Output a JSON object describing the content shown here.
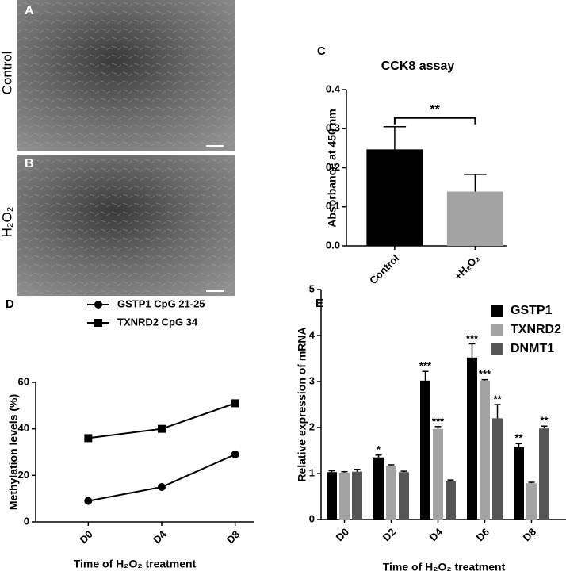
{
  "images": [
    {
      "panel_label": "A",
      "caption": "Control"
    },
    {
      "panel_label": "B",
      "caption": "H₂O₂"
    }
  ],
  "chart_data": [
    {
      "type": "bar",
      "panel_label": "C",
      "title": "CCK8 assay",
      "y_label": "Absorbance at 450 nm",
      "categories": [
        "Control",
        "+H₂O₂"
      ],
      "values": [
        0.247,
        0.139
      ],
      "errors": [
        0.058,
        0.044
      ],
      "colors": [
        "#000000",
        "#a3a3a3"
      ],
      "significance": "**",
      "ylim": [
        0,
        0.4
      ],
      "yticks": [
        {
          "value": 0,
          "label": "0.0"
        },
        0.1,
        0.2,
        0.3,
        0.4
      ]
    },
    {
      "type": "line",
      "panel_label": "D",
      "y_label": "Methylation levels (%)",
      "x_label": "Time of H₂O₂ treatment",
      "categories": [
        "D0",
        "D4",
        "D8"
      ],
      "series": [
        {
          "name": "GSTP1 CpG 21-25",
          "color": "#000000",
          "marker": "circle",
          "values": [
            9,
            15,
            29
          ]
        },
        {
          "name": "TXNRD2 CpG 34",
          "color": "#000000",
          "marker": "square",
          "values": [
            36,
            40,
            51
          ]
        }
      ],
      "ylim": [
        0,
        60
      ],
      "yticks": [
        0,
        20,
        40,
        60
      ]
    },
    {
      "type": "grouped-bar",
      "panel_label": "E",
      "y_label": "Relative expression of mRNA",
      "x_label": "Time of H₂O₂ treatment",
      "categories": [
        "D0",
        "D2",
        "D4",
        "D6",
        "D8"
      ],
      "series": [
        {
          "name": "GSTP1",
          "color": "#000000",
          "values": [
            1.03,
            1.35,
            3.02,
            3.52,
            1.57
          ],
          "errors": [
            0.03,
            0.05,
            0.2,
            0.3,
            0.08
          ],
          "significance": [
            null,
            "*",
            "***",
            "***",
            "**"
          ]
        },
        {
          "name": "TXNRD2",
          "color": "#a3a3a3",
          "values": [
            1.02,
            1.17,
            1.97,
            3.02,
            0.79
          ],
          "errors": [
            0.02,
            0.02,
            0.05,
            0.02,
            0.02
          ],
          "significance": [
            null,
            null,
            "***",
            "***",
            null
          ]
        },
        {
          "name": "DNMT1",
          "color": "#555555",
          "values": [
            1.04,
            1.03,
            0.83,
            2.2,
            1.98
          ],
          "errors": [
            0.05,
            0.02,
            0.03,
            0.3,
            0.05
          ],
          "significance": [
            null,
            null,
            null,
            "**",
            "**"
          ]
        }
      ],
      "ylim": [
        0,
        5
      ],
      "yticks": [
        0,
        1,
        2,
        3,
        4,
        5
      ]
    }
  ]
}
